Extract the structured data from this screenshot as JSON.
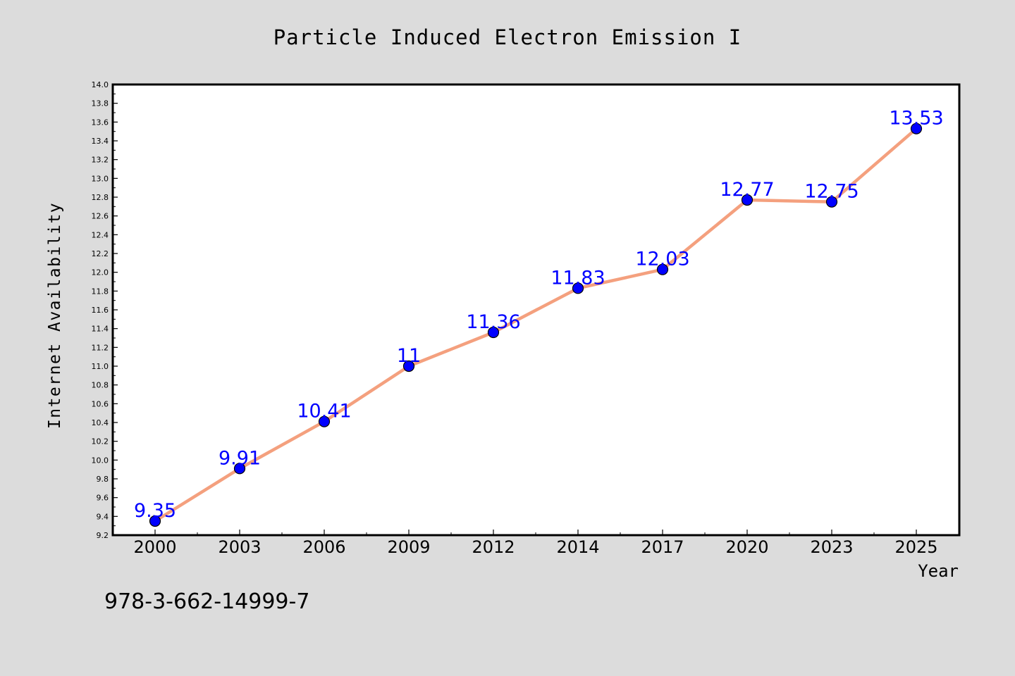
{
  "chart_data": {
    "type": "line",
    "title": "Particle Induced Electron Emission I",
    "xlabel": "Year",
    "ylabel": "Internet Availability",
    "categories": [
      "2000",
      "2003",
      "2006",
      "2009",
      "2012",
      "2014",
      "2017",
      "2020",
      "2023",
      "2025"
    ],
    "series": [
      {
        "values": [
          9.35,
          9.91,
          10.41,
          11,
          11.36,
          11.83,
          12.03,
          12.77,
          12.75,
          13.53
        ],
        "labels": [
          "9.35",
          "9.91",
          "10.41",
          "11",
          "11.36",
          "11.83",
          "12.03",
          "12.77",
          "12.75",
          "13.53"
        ]
      }
    ],
    "ylim": [
      9.2,
      14.0
    ],
    "yticks": [
      "9.2",
      "9.4",
      "9.6",
      "9.8",
      "10.0",
      "10.2",
      "10.4",
      "10.6",
      "10.8",
      "11.0",
      "11.2",
      "11.4",
      "11.6",
      "11.8",
      "12.0",
      "12.2",
      "12.4",
      "12.6",
      "12.8",
      "13.0",
      "13.2",
      "13.4",
      "13.6",
      "13.8",
      "14.0"
    ],
    "grid": false,
    "legend": "none",
    "colors": {
      "line": "#f4a07e",
      "marker": "#0000ff",
      "label": "#0000ff",
      "background": "#dcdcdc",
      "plot_background": "#ffffff"
    }
  },
  "footer": {
    "isbn": "978-3-662-14999-7"
  }
}
